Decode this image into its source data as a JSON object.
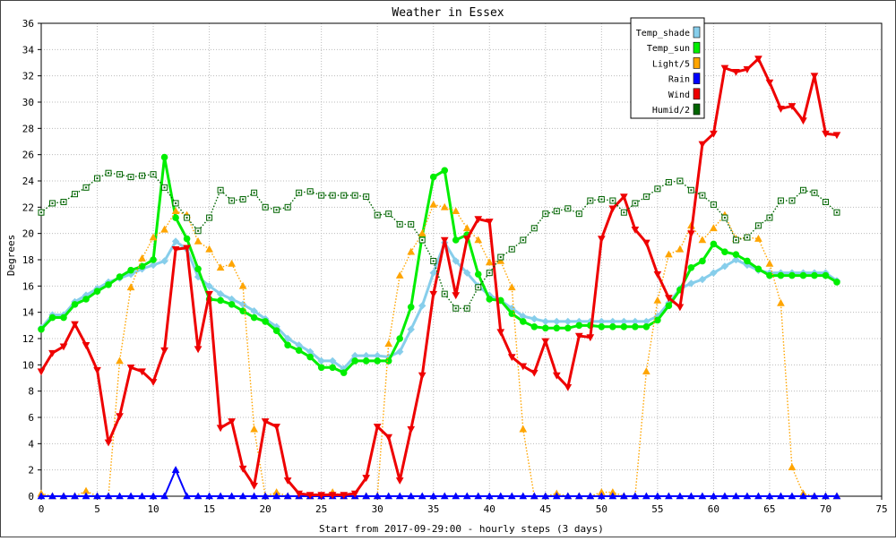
{
  "chart_data": {
    "type": "line",
    "title": "Weather in Essex",
    "xlabel": "Start from 2017-09-29:00 - hourly steps (3 days)",
    "ylabel": "Degrees",
    "xlim": [
      0,
      75
    ],
    "ylim": [
      0,
      36
    ],
    "xticks": [
      0,
      5,
      10,
      15,
      20,
      25,
      30,
      35,
      40,
      45,
      50,
      55,
      60,
      65,
      70,
      75
    ],
    "yticks": [
      0,
      2,
      4,
      6,
      8,
      10,
      12,
      14,
      16,
      18,
      20,
      22,
      24,
      26,
      28,
      30,
      32,
      34,
      36
    ],
    "grid": true,
    "legend_position": "top-right",
    "series": [
      {
        "name": "Temp_shade",
        "color": "#87ceeb",
        "marker": "diamond",
        "style": "solid",
        "values": [
          12.8,
          13.8,
          13.8,
          14.8,
          15.3,
          15.8,
          16.3,
          16.6,
          16.9,
          17.3,
          17.6,
          17.9,
          19.4,
          18.8,
          16.7,
          16.0,
          15.4,
          15.0,
          14.6,
          14.1,
          13.5,
          12.9,
          12.0,
          11.5,
          11.0,
          10.3,
          10.3,
          9.7,
          10.7,
          10.7,
          10.7,
          10.6,
          11.0,
          12.7,
          14.5,
          17.0,
          19.3,
          17.9,
          17.0,
          16.0,
          15.3,
          14.9,
          14.3,
          13.7,
          13.5,
          13.3,
          13.3,
          13.3,
          13.3,
          13.3,
          13.3,
          13.3,
          13.3,
          13.3,
          13.3,
          13.7,
          14.7,
          15.8,
          16.2,
          16.5,
          17.0,
          17.5,
          18.0,
          17.6,
          17.2,
          17.0,
          17.0,
          17.0,
          17.0,
          17.0,
          17.0,
          16.4
        ]
      },
      {
        "name": "Temp_sun",
        "color": "#00ee00",
        "marker": "circle",
        "style": "solid",
        "values": [
          12.7,
          13.6,
          13.6,
          14.6,
          15.0,
          15.6,
          16.1,
          16.7,
          17.2,
          17.5,
          18.0,
          25.8,
          21.2,
          19.6,
          17.3,
          15.0,
          14.9,
          14.6,
          14.1,
          13.6,
          13.3,
          12.6,
          11.5,
          11.1,
          10.6,
          9.8,
          9.8,
          9.4,
          10.3,
          10.3,
          10.3,
          10.3,
          12.0,
          14.4,
          19.8,
          24.3,
          24.8,
          19.5,
          19.9,
          16.9,
          15.0,
          14.9,
          13.9,
          13.3,
          12.9,
          12.8,
          12.8,
          12.8,
          13.0,
          13.0,
          12.9,
          12.9,
          12.9,
          12.9,
          12.9,
          13.4,
          14.5,
          15.7,
          17.4,
          17.9,
          19.2,
          18.6,
          18.4,
          17.9,
          17.3,
          16.8,
          16.8,
          16.8,
          16.8,
          16.8,
          16.8,
          16.3
        ]
      },
      {
        "name": "Light/5",
        "color": "#ffa500",
        "marker": "triangle",
        "style": "dotted",
        "values": [
          0.2,
          0,
          0,
          0,
          0.4,
          0,
          0,
          10.3,
          15.9,
          18.1,
          19.7,
          20.3,
          21.7,
          21.4,
          19.4,
          18.8,
          17.4,
          17.7,
          16.0,
          5.1,
          0,
          0.3,
          0,
          0,
          0,
          0,
          0.3,
          0,
          0,
          0,
          0,
          11.6,
          16.8,
          18.6,
          20.0,
          22.2,
          22.0,
          21.7,
          20.4,
          19.5,
          17.8,
          17.9,
          15.9,
          5.1,
          0,
          0,
          0.2,
          0,
          0,
          0,
          0.3,
          0.3,
          0,
          0,
          9.5,
          14.9,
          18.4,
          18.8,
          20.6,
          19.5,
          20.4,
          21.4,
          19.6,
          19.7,
          19.6,
          17.7,
          14.7,
          2.2,
          0.2,
          0,
          0,
          0
        ]
      },
      {
        "name": "Rain",
        "color": "#0000ff",
        "marker": "triangle",
        "style": "solid",
        "values": [
          0,
          0,
          0,
          0,
          0,
          0,
          0,
          0,
          0,
          0,
          0,
          0,
          2.0,
          0,
          0,
          0,
          0,
          0,
          0,
          0,
          0,
          0,
          0,
          0,
          0,
          0,
          0,
          0,
          0,
          0,
          0,
          0,
          0,
          0,
          0,
          0,
          0,
          0,
          0,
          0,
          0,
          0,
          0,
          0,
          0,
          0,
          0,
          0,
          0,
          0,
          0,
          0,
          0,
          0,
          0,
          0,
          0,
          0,
          0,
          0,
          0,
          0,
          0,
          0,
          0,
          0,
          0,
          0,
          0,
          0,
          0,
          0
        ]
      },
      {
        "name": "Wind",
        "color": "#ee0000",
        "marker": "down-triangle",
        "style": "solid",
        "values": [
          9.5,
          10.9,
          11.4,
          13.1,
          11.5,
          9.6,
          4.1,
          6.1,
          9.8,
          9.5,
          8.7,
          11.1,
          18.8,
          18.9,
          11.2,
          15.4,
          5.2,
          5.7,
          2.1,
          0.8,
          5.7,
          5.3,
          1.2,
          0.2,
          0.1,
          0.1,
          0.1,
          0.1,
          0.2,
          1.4,
          5.3,
          4.5,
          1.2,
          5.1,
          9.2,
          15.4,
          19.5,
          15.3,
          19.6,
          21.1,
          20.9,
          12.5,
          10.6,
          9.9,
          9.4,
          11.8,
          9.2,
          8.3,
          12.2,
          12.1,
          19.6,
          21.9,
          22.8,
          20.3,
          19.3,
          16.9,
          15.1,
          14.4,
          20.0,
          26.8,
          27.6,
          32.6,
          32.3,
          32.5,
          33.3,
          31.5,
          29.5,
          29.7,
          28.6,
          32.0,
          27.6,
          27.5
        ]
      },
      {
        "name": "Humid/2",
        "color": "#006400",
        "marker": "square",
        "style": "dotted",
        "values": [
          21.6,
          22.3,
          22.4,
          23.0,
          23.5,
          24.2,
          24.6,
          24.5,
          24.3,
          24.4,
          24.5,
          23.5,
          22.3,
          21.2,
          20.2,
          21.2,
          23.3,
          22.5,
          22.6,
          23.1,
          22.0,
          21.8,
          22.0,
          23.1,
          23.2,
          22.9,
          22.9,
          22.9,
          22.9,
          22.8,
          21.4,
          21.5,
          20.7,
          20.7,
          19.5,
          17.9,
          15.4,
          14.3,
          14.3,
          15.9,
          17.0,
          18.2,
          18.8,
          19.5,
          20.4,
          21.5,
          21.7,
          21.9,
          21.5,
          22.5,
          22.6,
          22.5,
          21.6,
          22.3,
          22.8,
          23.4,
          23.9,
          24.0,
          23.3,
          22.9,
          22.2,
          21.2,
          19.5,
          19.7,
          20.6,
          21.2,
          22.5,
          22.5,
          23.3,
          23.1,
          22.4,
          21.6
        ]
      }
    ]
  }
}
